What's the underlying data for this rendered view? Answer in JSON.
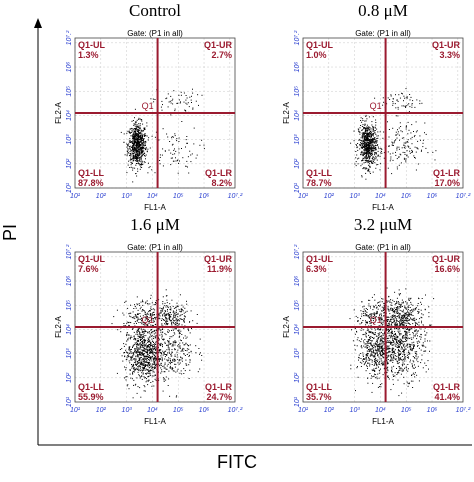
{
  "figure": {
    "x_title": "FITC",
    "y_title": "PI"
  },
  "chart_data": [
    {
      "type": "scatter",
      "title": "Control",
      "gate": "Gate: (P1 in all)",
      "xlabel": "FL1-A",
      "ylabel": "FL2-A",
      "x_scale": "log",
      "y_scale": "log",
      "xlim": [
        1,
        7.2
      ],
      "ylim": [
        1,
        7.2
      ],
      "x_ticks": [
        "10¹",
        "10²",
        "10³",
        "10⁴",
        "10⁵",
        "10⁶",
        "10⁷.²"
      ],
      "y_ticks": [
        "10¹",
        "10²",
        "10³",
        "10⁴",
        "10⁵",
        "10⁶",
        "10⁷.²"
      ],
      "quadrant_lines": {
        "x": 4.2,
        "y": 4.1
      },
      "quadrants": {
        "UL": {
          "label": "Q1-UL",
          "percent": "1.3%"
        },
        "UR": {
          "label": "Q1-UR",
          "percent": "2.7%"
        },
        "LL": {
          "label": "Q1-LL",
          "percent": "87.8%"
        },
        "LR": {
          "label": "Q1-LR",
          "percent": "8.2%"
        }
      }
    },
    {
      "type": "scatter",
      "title": "0.8 μM",
      "gate": "Gate: (P1 in all)",
      "xlabel": "FL1-A",
      "ylabel": "FL2-A",
      "x_scale": "log",
      "y_scale": "log",
      "xlim": [
        1,
        7.2
      ],
      "ylim": [
        1,
        7.2
      ],
      "x_ticks": [
        "10¹",
        "10²",
        "10³",
        "10⁴",
        "10⁵",
        "10⁶",
        "10⁷.²"
      ],
      "y_ticks": [
        "10¹",
        "10²",
        "10³",
        "10⁴",
        "10⁵",
        "10⁶",
        "10⁷.²"
      ],
      "quadrant_lines": {
        "x": 4.2,
        "y": 4.1
      },
      "quadrants": {
        "UL": {
          "label": "Q1-UL",
          "percent": "1.0%"
        },
        "UR": {
          "label": "Q1-UR",
          "percent": "3.3%"
        },
        "LL": {
          "label": "Q1-LL",
          "percent": "78.7%"
        },
        "LR": {
          "label": "Q1-LR",
          "percent": "17.0%"
        }
      }
    },
    {
      "type": "scatter",
      "title": "1.6 μM",
      "gate": "Gate: (P1 in all)",
      "xlabel": "FL1-A",
      "ylabel": "FL2-A",
      "x_scale": "log",
      "y_scale": "log",
      "xlim": [
        1,
        7.2
      ],
      "ylim": [
        1,
        7.2
      ],
      "x_ticks": [
        "10¹",
        "10²",
        "10³",
        "10⁴",
        "10⁵",
        "10⁶",
        "10⁷.²"
      ],
      "y_ticks": [
        "10¹",
        "10²",
        "10³",
        "10⁴",
        "10⁵",
        "10⁶",
        "10⁷.²"
      ],
      "quadrant_lines": {
        "x": 4.2,
        "y": 4.1
      },
      "quadrants": {
        "UL": {
          "label": "Q1-UL",
          "percent": "7.6%"
        },
        "UR": {
          "label": "Q1-UR",
          "percent": "11.9%"
        },
        "LL": {
          "label": "Q1-LL",
          "percent": "55.9%"
        },
        "LR": {
          "label": "Q1-LR",
          "percent": "24.7%"
        }
      }
    },
    {
      "type": "scatter",
      "title": "3.2 μuM",
      "gate": "Gate: (P1 in all)",
      "xlabel": "FL1-A",
      "ylabel": "FL2-A",
      "x_scale": "log",
      "y_scale": "log",
      "xlim": [
        1,
        7.2
      ],
      "ylim": [
        1,
        7.2
      ],
      "x_ticks": [
        "10¹",
        "10²",
        "10³",
        "10⁴",
        "10⁵",
        "10⁶",
        "10⁷.²"
      ],
      "y_ticks": [
        "10¹",
        "10²",
        "10³",
        "10⁴",
        "10⁵",
        "10⁶",
        "10⁷.²"
      ],
      "quadrant_lines": {
        "x": 4.2,
        "y": 4.1
      },
      "quadrants": {
        "UL": {
          "label": "Q1-UL",
          "percent": "6.3%"
        },
        "UR": {
          "label": "Q1-UR",
          "percent": "16.6%"
        },
        "LL": {
          "label": "Q1-LL",
          "percent": "35.7%"
        },
        "LR": {
          "label": "Q1-LR",
          "percent": "41.4%"
        }
      }
    }
  ]
}
